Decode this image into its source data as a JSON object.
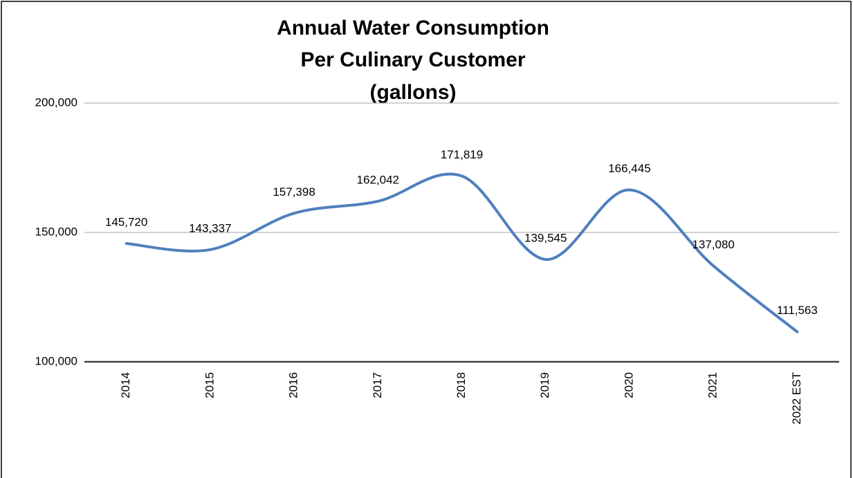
{
  "chart_data": {
    "type": "line",
    "title": [
      "Annual Water Consumption",
      "Per Culinary Customer",
      "(gallons)"
    ],
    "categories": [
      "2014",
      "2015",
      "2016",
      "2017",
      "2018",
      "2019",
      "2020",
      "2021",
      "2022 EST"
    ],
    "series": [
      {
        "name": "Annual Water Consumption",
        "color": "#4f7fbd",
        "values": [
          145720,
          143337,
          157398,
          162042,
          171819,
          139545,
          166445,
          137080,
          111563
        ],
        "value_labels": [
          "145,720",
          "143,337",
          "157,398",
          "162,042",
          "171,819",
          "139,545",
          "166,445",
          "137,080",
          "111,563"
        ]
      }
    ],
    "ylim": [
      100000,
      200000
    ],
    "yticks": [
      {
        "value": 100000,
        "label": "100,000"
      },
      {
        "value": 150000,
        "label": "150,000"
      },
      {
        "value": 200000,
        "label": "200,000"
      }
    ],
    "grid": true,
    "smooth": true
  }
}
